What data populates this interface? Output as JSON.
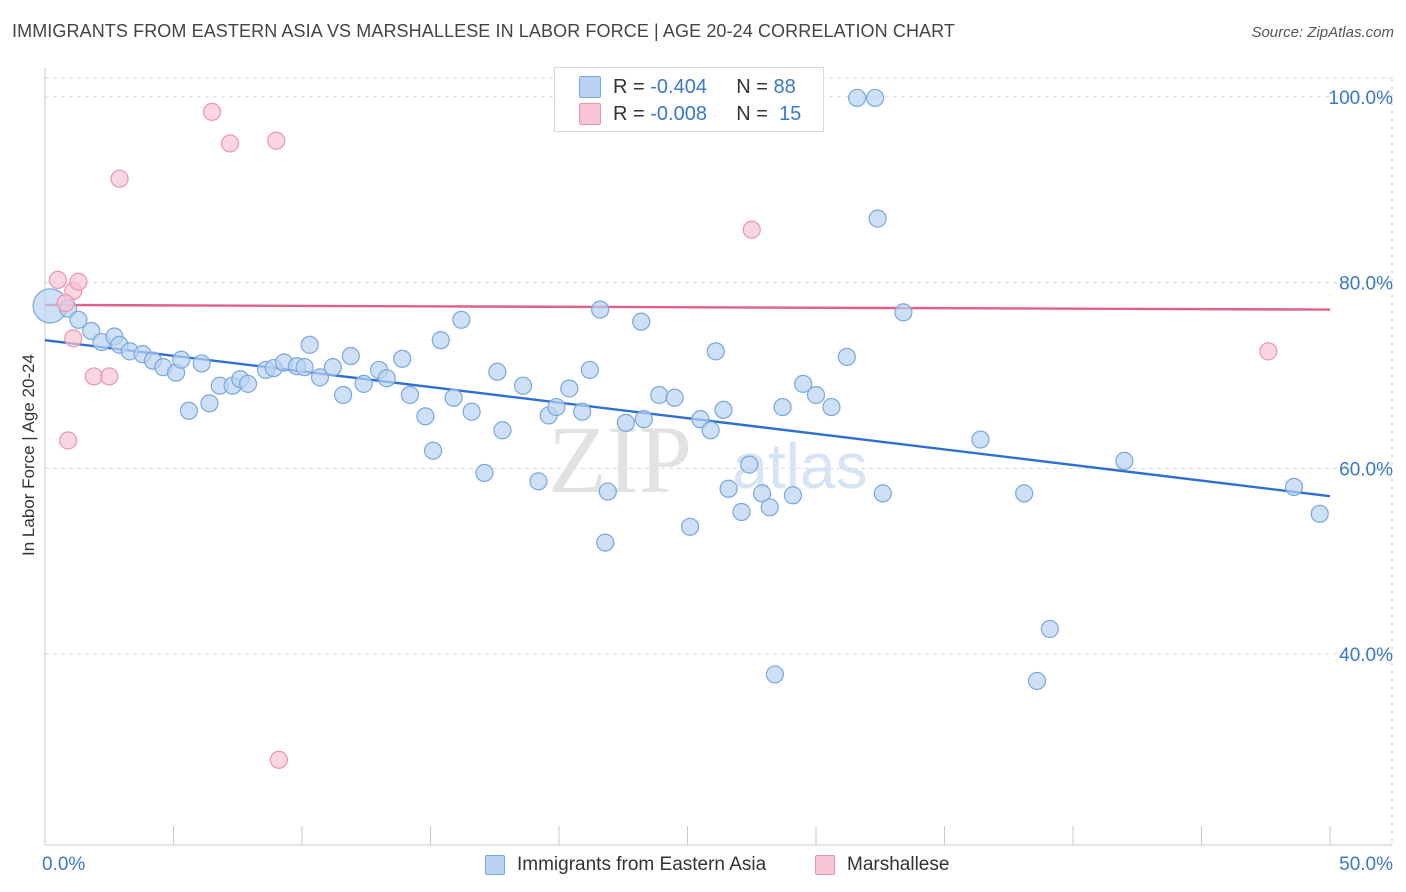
{
  "title": "IMMIGRANTS FROM EASTERN ASIA VS MARSHALLESE IN LABOR FORCE | AGE 20-24 CORRELATION CHART",
  "source": "Source: ZipAtlas.com",
  "watermark": {
    "zip": "ZIP",
    "atlas": "atlas"
  },
  "stats": [
    {
      "r_label": "R =",
      "r_value": "-0.404",
      "n_label": "N =",
      "n_value": "88"
    },
    {
      "r_label": "R =",
      "r_value": "-0.008",
      "n_label": "N =",
      "n_value": "15"
    }
  ],
  "legend": [
    "Immigrants from Eastern Asia",
    "Marshallese"
  ],
  "colors": {
    "blue_fill": "#b9d3f2",
    "blue_stroke": "#7aa7dc",
    "blue_line": "#2f6fd0",
    "pink_fill": "#f7c6d4",
    "pink_stroke": "#ee93ad",
    "pink_line": "#e0608a",
    "tick_text": "#3a78c9",
    "grid": "#d8d8d8"
  },
  "chart_data": {
    "type": "scatter",
    "title": "IMMIGRANTS FROM EASTERN ASIA VS MARSHALLESE IN LABOR FORCE | AGE 20-24 CORRELATION CHART",
    "xlabel": "",
    "ylabel": "In Labor Force | Age 20-24",
    "xlim": [
      0,
      50
    ],
    "ylim": [
      20,
      102
    ],
    "x_tick_labels": [
      {
        "value": 0,
        "label": "0.0%"
      },
      {
        "value": 50,
        "label": "50.0%"
      }
    ],
    "y_tick_labels": [
      {
        "value": 100,
        "label": "100.0%"
      },
      {
        "value": 80,
        "label": "80.0%"
      },
      {
        "value": 60,
        "label": "60.0%"
      },
      {
        "value": 40,
        "label": "40.0%"
      }
    ],
    "grid": true,
    "legend_position": "bottom",
    "series": [
      {
        "name": "Immigrants from Eastern Asia",
        "color": "#b9d3f2",
        "trend": {
          "x0": 0,
          "y0": 73.8,
          "x1": 50,
          "y1": 57.0
        },
        "points": [
          [
            0.2,
            77.5
          ],
          [
            0.9,
            77.2
          ],
          [
            1.3,
            76.0
          ],
          [
            1.8,
            74.8
          ],
          [
            2.2,
            73.6
          ],
          [
            2.7,
            74.2
          ],
          [
            2.9,
            73.3
          ],
          [
            3.3,
            72.6
          ],
          [
            3.8,
            72.3
          ],
          [
            4.2,
            71.6
          ],
          [
            4.6,
            70.9
          ],
          [
            5.1,
            70.3
          ],
          [
            5.3,
            71.7
          ],
          [
            5.6,
            66.2
          ],
          [
            6.1,
            71.3
          ],
          [
            6.4,
            67.0
          ],
          [
            6.8,
            68.9
          ],
          [
            7.3,
            68.9
          ],
          [
            7.6,
            69.6
          ],
          [
            7.9,
            69.1
          ],
          [
            8.6,
            70.6
          ],
          [
            8.9,
            70.8
          ],
          [
            9.3,
            71.4
          ],
          [
            9.8,
            71.0
          ],
          [
            10.1,
            70.9
          ],
          [
            10.3,
            73.3
          ],
          [
            10.7,
            69.8
          ],
          [
            11.2,
            70.9
          ],
          [
            11.6,
            67.9
          ],
          [
            11.9,
            72.1
          ],
          [
            12.4,
            69.1
          ],
          [
            13.0,
            70.6
          ],
          [
            13.3,
            69.7
          ],
          [
            13.9,
            71.8
          ],
          [
            14.2,
            67.9
          ],
          [
            14.8,
            65.6
          ],
          [
            15.1,
            61.9
          ],
          [
            15.4,
            73.8
          ],
          [
            15.9,
            67.6
          ],
          [
            16.2,
            76.0
          ],
          [
            16.6,
            66.1
          ],
          [
            17.1,
            59.5
          ],
          [
            17.6,
            70.4
          ],
          [
            17.8,
            64.1
          ],
          [
            18.6,
            68.9
          ],
          [
            19.2,
            58.6
          ],
          [
            19.6,
            65.7
          ],
          [
            19.9,
            66.6
          ],
          [
            20.4,
            68.6
          ],
          [
            20.9,
            66.1
          ],
          [
            21.2,
            70.6
          ],
          [
            21.6,
            77.1
          ],
          [
            21.9,
            57.5
          ],
          [
            21.8,
            52.0
          ],
          [
            22.6,
            64.9
          ],
          [
            23.2,
            75.8
          ],
          [
            23.3,
            65.3
          ],
          [
            23.9,
            67.9
          ],
          [
            24.5,
            67.6
          ],
          [
            25.1,
            53.7
          ],
          [
            25.5,
            65.3
          ],
          [
            25.9,
            64.1
          ],
          [
            26.1,
            72.6
          ],
          [
            26.4,
            66.3
          ],
          [
            27.1,
            55.3
          ],
          [
            27.4,
            60.4
          ],
          [
            27.9,
            57.3
          ],
          [
            28.2,
            55.8
          ],
          [
            28.7,
            66.6
          ],
          [
            29.1,
            57.1
          ],
          [
            29.5,
            69.1
          ],
          [
            30.0,
            67.9
          ],
          [
            30.6,
            66.6
          ],
          [
            31.6,
            99.9
          ],
          [
            32.3,
            99.9
          ],
          [
            32.4,
            86.9
          ],
          [
            32.6,
            57.3
          ],
          [
            33.4,
            76.8
          ],
          [
            28.4,
            37.8
          ],
          [
            36.4,
            63.1
          ],
          [
            38.1,
            57.3
          ],
          [
            39.1,
            42.7
          ],
          [
            38.6,
            37.1
          ],
          [
            42.0,
            60.8
          ],
          [
            48.6,
            58.0
          ],
          [
            49.6,
            55.1
          ],
          [
            31.2,
            72.0
          ],
          [
            26.6,
            57.8
          ]
        ]
      },
      {
        "name": "Marshallese",
        "color": "#f7c6d4",
        "trend": {
          "x0": 0,
          "y0": 77.6,
          "x1": 50,
          "y1": 77.1
        },
        "points": [
          [
            0.5,
            80.3
          ],
          [
            1.1,
            79.1
          ],
          [
            0.8,
            77.8
          ],
          [
            1.3,
            80.1
          ],
          [
            1.1,
            74.0
          ],
          [
            1.9,
            69.9
          ],
          [
            2.5,
            69.9
          ],
          [
            2.9,
            91.2
          ],
          [
            6.5,
            98.4
          ],
          [
            7.2,
            95.0
          ],
          [
            9.0,
            95.3
          ],
          [
            0.9,
            63.0
          ],
          [
            9.1,
            28.6
          ],
          [
            27.5,
            85.7
          ],
          [
            47.6,
            72.6
          ]
        ]
      }
    ]
  }
}
